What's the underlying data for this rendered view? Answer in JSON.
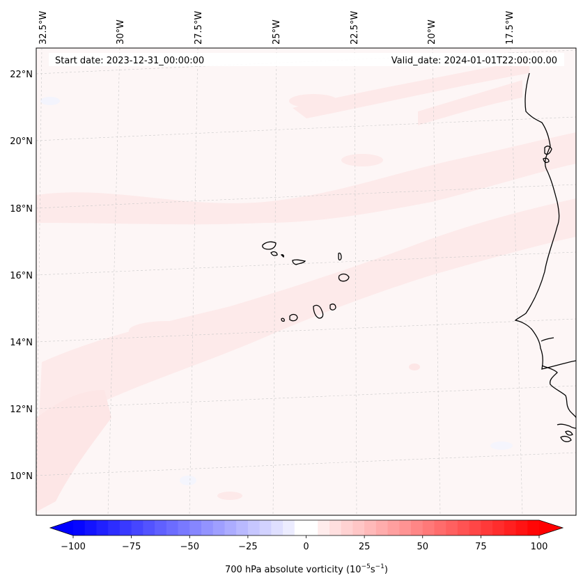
{
  "header": {
    "start_date": "Start date: 2023-12-31_00:00:00",
    "valid_date": "Valid_date: 2024-01-01T22:00:00.00"
  },
  "lon_labels": [
    "32.5°W",
    "30°W",
    "27.5°W",
    "25°W",
    "22.5°W",
    "20°W",
    "17.5°W"
  ],
  "lat_labels": [
    "22°N",
    "20°N",
    "18°N",
    "16°N",
    "14°N",
    "12°N",
    "10°N"
  ],
  "colorbar": {
    "ticks": [
      "−100",
      "−75",
      "−50",
      "−25",
      "0",
      "25",
      "50",
      "75",
      "100"
    ],
    "label": "700 hPa absolute vorticity (10",
    "label_exp1": "−5",
    "label_mid": "s",
    "label_exp2": "−1",
    "label_end": ")",
    "min": -100,
    "max": 100,
    "low_color": "#0000ff",
    "high_color": "#ff0000"
  },
  "colors": {
    "background_field": "#fdf6f6",
    "positive_band": "#fdeaea",
    "coastline": "#000000",
    "gridline": "#c8c8c8"
  }
}
